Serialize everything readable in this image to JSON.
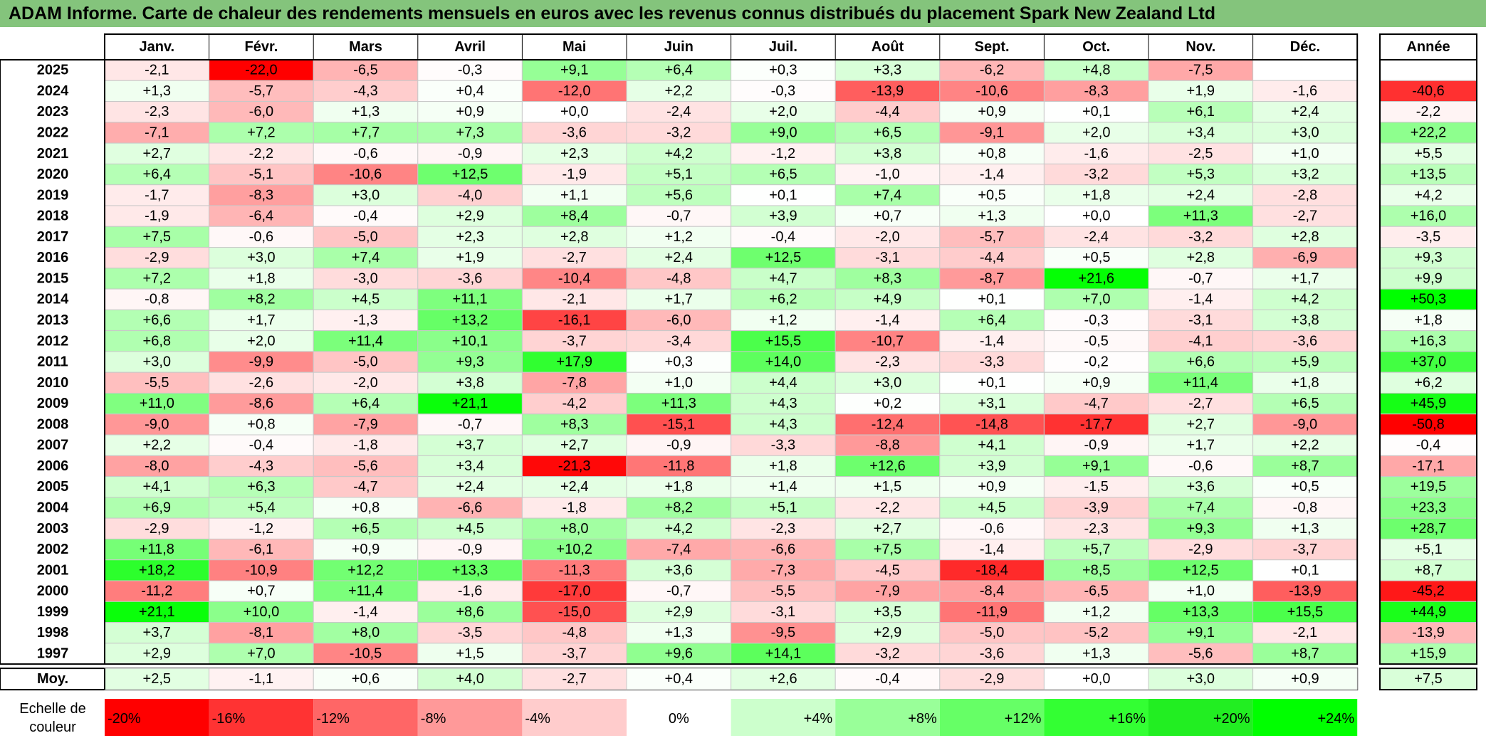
{
  "title": "ADAM Informe. Carte de chaleur des rendements mensuels en euros avec les revenus connus distribués du placement Spark New Zealand Ltd",
  "chart_data": {
    "type": "heatmap",
    "months": [
      "Janv.",
      "Févr.",
      "Mars",
      "Avril",
      "Mai",
      "Juin",
      "Juil.",
      "Août",
      "Sept.",
      "Oct.",
      "Nov.",
      "Déc."
    ],
    "annual_label": "Année",
    "rows": [
      {
        "year": "2025",
        "values": [
          "-2,1",
          "-22,0",
          "-6,5",
          "-0,3",
          "+9,1",
          "+6,4",
          "+0,3",
          "+3,3",
          "-6,2",
          "+4,8",
          "-7,5",
          ""
        ],
        "annual": ""
      },
      {
        "year": "2024",
        "values": [
          "+1,3",
          "-5,7",
          "-4,3",
          "+0,4",
          "-12,0",
          "+2,2",
          "-0,3",
          "-13,9",
          "-10,6",
          "-8,3",
          "+1,9",
          "-1,6"
        ],
        "annual": "-40,6"
      },
      {
        "year": "2023",
        "values": [
          "-2,3",
          "-6,0",
          "+1,3",
          "+0,9",
          "+0,0",
          "-2,4",
          "+2,0",
          "-4,4",
          "+0,9",
          "+0,1",
          "+6,1",
          "+2,4"
        ],
        "annual": "-2,2"
      },
      {
        "year": "2022",
        "values": [
          "-7,1",
          "+7,2",
          "+7,7",
          "+7,3",
          "-3,6",
          "-3,2",
          "+9,0",
          "+6,5",
          "-9,1",
          "+2,0",
          "+3,4",
          "+3,0"
        ],
        "annual": "+22,2"
      },
      {
        "year": "2021",
        "values": [
          "+2,7",
          "-2,2",
          "-0,6",
          "-0,9",
          "+2,3",
          "+4,2",
          "-1,2",
          "+3,8",
          "+0,8",
          "-1,6",
          "-2,5",
          "+1,0"
        ],
        "annual": "+5,5"
      },
      {
        "year": "2020",
        "values": [
          "+6,4",
          "-5,1",
          "-10,6",
          "+12,5",
          "-1,9",
          "+5,1",
          "+6,5",
          "-1,0",
          "-1,4",
          "-3,2",
          "+5,3",
          "+3,2"
        ],
        "annual": "+13,5"
      },
      {
        "year": "2019",
        "values": [
          "-1,7",
          "-8,3",
          "+3,0",
          "-4,0",
          "+1,1",
          "+5,6",
          "+0,1",
          "+7,4",
          "+0,5",
          "+1,8",
          "+2,4",
          "-2,8"
        ],
        "annual": "+4,2"
      },
      {
        "year": "2018",
        "values": [
          "-1,9",
          "-6,4",
          "-0,4",
          "+2,9",
          "+8,4",
          "-0,7",
          "+3,9",
          "+0,7",
          "+1,3",
          "+0,0",
          "+11,3",
          "-2,7"
        ],
        "annual": "+16,0"
      },
      {
        "year": "2017",
        "values": [
          "+7,5",
          "-0,6",
          "-5,0",
          "+2,3",
          "+2,8",
          "+1,2",
          "-0,4",
          "-2,0",
          "-5,7",
          "-2,4",
          "-3,2",
          "+2,8"
        ],
        "annual": "-3,5"
      },
      {
        "year": "2016",
        "values": [
          "-2,9",
          "+3,0",
          "+7,4",
          "+1,9",
          "-2,7",
          "+2,4",
          "+12,5",
          "-3,1",
          "-4,4",
          "+0,5",
          "+2,8",
          "-6,9"
        ],
        "annual": "+9,3"
      },
      {
        "year": "2015",
        "values": [
          "+7,2",
          "+1,8",
          "-3,0",
          "-3,6",
          "-10,4",
          "-4,8",
          "+4,7",
          "+8,3",
          "-8,7",
          "+21,6",
          "-0,7",
          "+1,7"
        ],
        "annual": "+9,9"
      },
      {
        "year": "2014",
        "values": [
          "-0,8",
          "+8,2",
          "+4,5",
          "+11,1",
          "-2,1",
          "+1,7",
          "+6,2",
          "+4,9",
          "+0,1",
          "+7,0",
          "-1,4",
          "+4,2"
        ],
        "annual": "+50,3"
      },
      {
        "year": "2013",
        "values": [
          "+6,6",
          "+1,7",
          "-1,3",
          "+13,2",
          "-16,1",
          "-6,0",
          "+1,2",
          "-1,4",
          "+6,4",
          "-0,3",
          "-3,1",
          "+3,8"
        ],
        "annual": "+1,8"
      },
      {
        "year": "2012",
        "values": [
          "+6,8",
          "+2,0",
          "+11,4",
          "+10,1",
          "-3,7",
          "-3,4",
          "+15,5",
          "-10,7",
          "-1,4",
          "-0,5",
          "-4,1",
          "-3,6"
        ],
        "annual": "+16,3"
      },
      {
        "year": "2011",
        "values": [
          "+3,0",
          "-9,9",
          "-5,0",
          "+9,3",
          "+17,9",
          "+0,3",
          "+14,0",
          "-2,3",
          "-3,3",
          "-0,2",
          "+6,6",
          "+5,9"
        ],
        "annual": "+37,0"
      },
      {
        "year": "2010",
        "values": [
          "-5,5",
          "-2,6",
          "-2,0",
          "+3,8",
          "-7,8",
          "+1,0",
          "+4,4",
          "+3,0",
          "+0,1",
          "+0,9",
          "+11,4",
          "+1,8"
        ],
        "annual": "+6,2"
      },
      {
        "year": "2009",
        "values": [
          "+11,0",
          "-8,6",
          "+6,4",
          "+21,1",
          "-4,2",
          "+11,3",
          "+4,3",
          "+0,2",
          "+3,1",
          "-4,7",
          "-2,7",
          "+6,5"
        ],
        "annual": "+45,9"
      },
      {
        "year": "2008",
        "values": [
          "-9,0",
          "+0,8",
          "-7,9",
          "-0,7",
          "+8,3",
          "-15,1",
          "+4,3",
          "-12,4",
          "-14,8",
          "-17,7",
          "+2,7",
          "-9,0"
        ],
        "annual": "-50,8"
      },
      {
        "year": "2007",
        "values": [
          "+2,2",
          "-0,4",
          "-1,8",
          "+3,7",
          "+2,7",
          "-0,9",
          "-3,3",
          "-8,8",
          "+4,1",
          "-0,9",
          "+1,7",
          "+2,2"
        ],
        "annual": "-0,4"
      },
      {
        "year": "2006",
        "values": [
          "-8,0",
          "-4,3",
          "-5,6",
          "+3,4",
          "-21,3",
          "-11,8",
          "+1,8",
          "+12,6",
          "+3,9",
          "+9,1",
          "-0,6",
          "+8,7"
        ],
        "annual": "-17,1"
      },
      {
        "year": "2005",
        "values": [
          "+4,1",
          "+6,3",
          "-4,7",
          "+2,4",
          "+2,4",
          "+1,8",
          "+1,4",
          "+1,5",
          "+0,9",
          "-1,5",
          "+3,6",
          "+0,5"
        ],
        "annual": "+19,5"
      },
      {
        "year": "2004",
        "values": [
          "+6,9",
          "+5,4",
          "+0,8",
          "-6,6",
          "-1,8",
          "+8,2",
          "+5,1",
          "-2,2",
          "+4,5",
          "-3,9",
          "+7,4",
          "-0,8"
        ],
        "annual": "+23,3"
      },
      {
        "year": "2003",
        "values": [
          "-2,9",
          "-1,2",
          "+6,5",
          "+4,5",
          "+8,0",
          "+4,2",
          "-2,3",
          "+2,7",
          "-0,6",
          "-2,3",
          "+9,3",
          "+1,3"
        ],
        "annual": "+28,7"
      },
      {
        "year": "2002",
        "values": [
          "+11,8",
          "-6,1",
          "+0,9",
          "-0,9",
          "+10,2",
          "-7,4",
          "-6,6",
          "+7,5",
          "-1,4",
          "+5,7",
          "-2,9",
          "-3,7"
        ],
        "annual": "+5,1"
      },
      {
        "year": "2001",
        "values": [
          "+18,2",
          "-10,9",
          "+12,2",
          "+13,3",
          "-11,3",
          "+3,6",
          "-7,3",
          "-4,5",
          "-18,4",
          "+8,5",
          "+12,5",
          "+0,1"
        ],
        "annual": "+8,7"
      },
      {
        "year": "2000",
        "values": [
          "-11,2",
          "+0,7",
          "+11,4",
          "-1,6",
          "-17,0",
          "-0,7",
          "-5,5",
          "-7,9",
          "-8,4",
          "-6,5",
          "+1,0",
          "-13,9"
        ],
        "annual": "-45,2"
      },
      {
        "year": "1999",
        "values": [
          "+21,1",
          "+10,0",
          "-1,4",
          "+8,6",
          "-15,0",
          "+2,9",
          "-3,1",
          "+3,5",
          "-11,9",
          "+1,2",
          "+13,3",
          "+15,5"
        ],
        "annual": "+44,9"
      },
      {
        "year": "1998",
        "values": [
          "+3,7",
          "-8,1",
          "+8,0",
          "-3,5",
          "-4,8",
          "+1,3",
          "-9,5",
          "+2,9",
          "-5,0",
          "-5,2",
          "+9,1",
          "-2,1"
        ],
        "annual": "-13,9"
      },
      {
        "year": "1997",
        "values": [
          "+2,9",
          "+7,0",
          "-10,5",
          "+1,5",
          "-3,7",
          "+9,6",
          "+14,1",
          "-3,2",
          "-3,6",
          "+1,3",
          "-5,6",
          "+8,7"
        ],
        "annual": "+15,9"
      }
    ],
    "average": {
      "label": "Moy.",
      "values": [
        "+2,5",
        "-1,1",
        "+0,6",
        "+4,0",
        "-2,7",
        "+0,4",
        "+2,6",
        "-0,4",
        "-2,9",
        "+0,0",
        "+3,0",
        "+0,9"
      ],
      "annual": "+7,5"
    },
    "scale": {
      "label_line1": "Echelle de",
      "label_line2": "couleur",
      "items": [
        {
          "label": "-20%",
          "color": "#ff0000",
          "align": "left"
        },
        {
          "label": "-16%",
          "color": "#ff3333",
          "align": "left"
        },
        {
          "label": "-12%",
          "color": "#ff6666",
          "align": "left"
        },
        {
          "label": "-8%",
          "color": "#ff9999",
          "align": "left"
        },
        {
          "label": "-4%",
          "color": "#ffcccc",
          "align": "left"
        },
        {
          "label": "0%",
          "color": "#ffffff",
          "align": "center"
        },
        {
          "label": "+4%",
          "color": "#ccffcc",
          "align": "right"
        },
        {
          "label": "+8%",
          "color": "#99ff99",
          "align": "right"
        },
        {
          "label": "+12%",
          "color": "#66ff66",
          "align": "right"
        },
        {
          "label": "+16%",
          "color": "#33ff33",
          "align": "right"
        },
        {
          "label": "+20%",
          "color": "#22ee22",
          "align": "right"
        },
        {
          "label": "+24%",
          "color": "#00ff00",
          "align": "right"
        }
      ]
    }
  }
}
